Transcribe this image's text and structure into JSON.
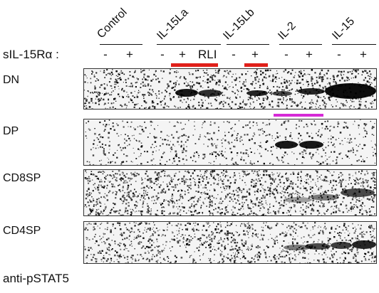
{
  "columns": [
    {
      "label": "Control"
    },
    {
      "label": "IL-15La"
    },
    {
      "label": "IL-15Lb"
    },
    {
      "label": "IL-2"
    },
    {
      "label": "IL-15"
    }
  ],
  "receptor_label": "sIL-15Rα :",
  "signs": [
    "-",
    "+",
    "-",
    "+",
    "RLI",
    "-",
    "+",
    "-",
    "+",
    "-",
    "+"
  ],
  "rows": [
    {
      "label": "DN"
    },
    {
      "label": "DP"
    },
    {
      "label": "CD8SP"
    },
    {
      "label": "CD4SP"
    }
  ],
  "highlight_colors": {
    "red": "#e0201a",
    "magenta": "#d62ad6"
  },
  "footer": "anti-pSTAT5"
}
